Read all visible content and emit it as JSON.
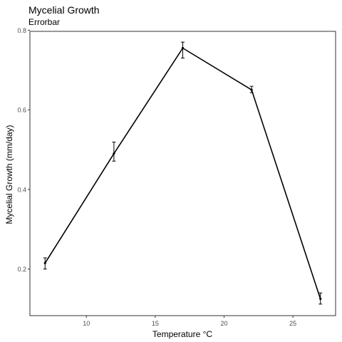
{
  "chart_data": {
    "type": "line",
    "title": "Mycelial Growth",
    "subtitle": "Errorbar",
    "xlabel": "Temperature °C",
    "ylabel": "Mycelial Growth (mm/day)",
    "x": [
      7,
      12,
      17,
      22,
      27
    ],
    "series": [
      {
        "values": [
          0.215,
          0.49,
          0.755,
          0.65,
          0.125
        ],
        "error_low": [
          0.2,
          0.471,
          0.73,
          0.643,
          0.112
        ],
        "error_high": [
          0.228,
          0.519,
          0.77,
          0.659,
          0.14
        ]
      }
    ],
    "xlim": [
      5.9,
      28.1
    ],
    "ylim": [
      0.083,
      0.797
    ],
    "xticks": [
      10,
      15,
      20,
      25
    ],
    "yticks": [
      0.2,
      0.4,
      0.6,
      0.8
    ],
    "xtick_labels": [
      "10",
      "15",
      "20",
      "25"
    ],
    "ytick_labels": [
      "0.2",
      "0.4",
      "0.6",
      "0.8"
    ],
    "grid": false,
    "legend": "none",
    "colors": {
      "line": "#000000",
      "axis_text": "#4d4d4d",
      "panel_border": "#333333"
    }
  }
}
